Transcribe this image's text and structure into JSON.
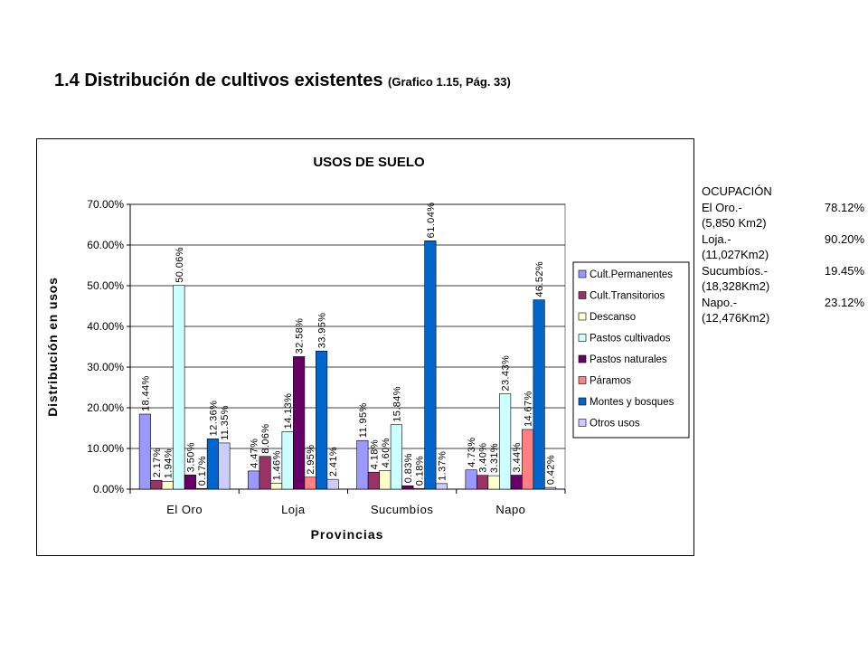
{
  "header": {
    "title": "1.4 Distribución de cultivos existentes",
    "subtitle": "(Grafico 1.15, Pág. 33)"
  },
  "side_note": {
    "title": "OCUPACIÓN",
    "items": [
      {
        "name": "El Oro.-",
        "pct": "78.12%",
        "area": "(5,850 Km2)"
      },
      {
        "name": "Loja.-",
        "pct": "90.20%",
        "area": "(11,027Km2)"
      },
      {
        "name": "Sucumbíos.-",
        "pct": "19.45%",
        "area": "(18,328Km2)"
      },
      {
        "name": "Napo.-",
        "pct": "23.12%",
        "area": "(12,476Km2)"
      }
    ]
  },
  "chart_data": {
    "type": "bar",
    "title": "USOS DE SUELO",
    "xlabel": "Provincias",
    "ylabel": "Distribución en usos",
    "ylim": [
      0,
      70
    ],
    "yticks": [
      "0.00%",
      "10.00%",
      "20.00%",
      "30.00%",
      "40.00%",
      "50.00%",
      "60.00%",
      "70.00%"
    ],
    "grid": true,
    "legend_position": "right",
    "categories": [
      "El Oro",
      "Loja",
      "Sucumbíos",
      "Napo"
    ],
    "series": [
      {
        "name": "Cult.Permanentes",
        "color": "#9999ff",
        "values": [
          18.44,
          4.47,
          11.95,
          4.73
        ],
        "labels": [
          "18.44%",
          "4.47%",
          "11.95%",
          "4.73%"
        ]
      },
      {
        "name": "Cult.Transitorios",
        "color": "#993366",
        "values": [
          2.17,
          8.06,
          4.18,
          3.4
        ],
        "labels": [
          "2.17%",
          "8.06%",
          "4.18%",
          "3.40%"
        ]
      },
      {
        "name": "Descanso",
        "color": "#ffffcc",
        "values": [
          1.94,
          1.46,
          4.6,
          3.31
        ],
        "labels": [
          "1.94%",
          "1.46%",
          "4.60%",
          "3.31%"
        ]
      },
      {
        "name": "Pastos cultivados",
        "color": "#ccffff",
        "values": [
          50.06,
          14.13,
          15.84,
          23.43
        ],
        "labels": [
          "50.06%",
          "14.13%",
          "15.84%",
          "23.43%"
        ]
      },
      {
        "name": "Pastos naturales",
        "color": "#660066",
        "values": [
          3.5,
          32.58,
          0.83,
          3.44
        ],
        "labels": [
          "3.50%",
          "32.58%",
          "0.83%",
          "3.44%"
        ]
      },
      {
        "name": "Páramos",
        "color": "#ff8080",
        "values": [
          0.17,
          2.95,
          0.18,
          14.67
        ],
        "labels": [
          "0.17%",
          "2.95%",
          "0.18%",
          "14.67%"
        ]
      },
      {
        "name": "Montes y bosques",
        "color": "#0066cc",
        "values": [
          12.36,
          33.95,
          61.04,
          46.52
        ],
        "labels": [
          "12.36%",
          "33.95%",
          "61.04%",
          "46.52%"
        ]
      },
      {
        "name": "Otros usos",
        "color": "#ccccff",
        "values": [
          11.35,
          2.41,
          1.37,
          0.42
        ],
        "labels": [
          "11.35%",
          "2.41%",
          "1.37%",
          "0.42%"
        ]
      }
    ]
  }
}
